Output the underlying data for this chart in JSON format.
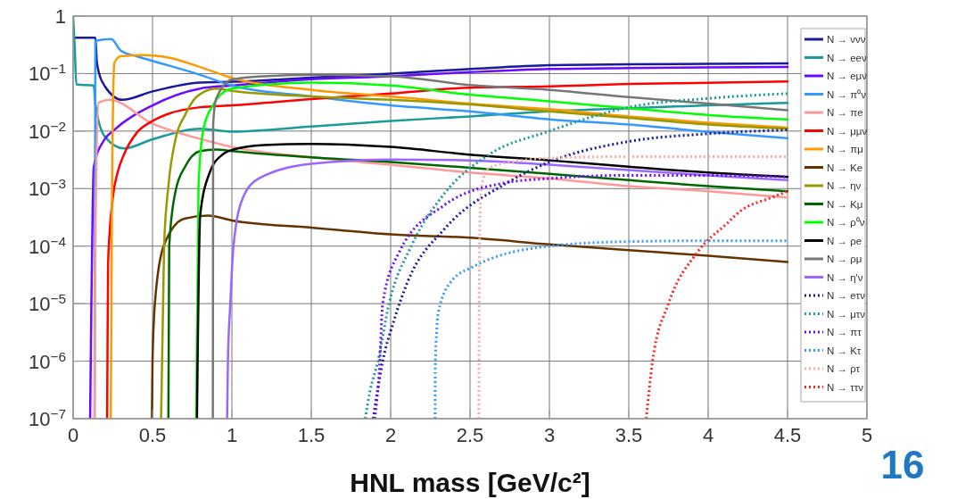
{
  "chart_data": {
    "type": "line",
    "xlabel": "HNL mass [GeV/c²]",
    "annotations": [
      "16"
    ],
    "xlim": [
      0,
      5
    ],
    "xticks": [
      0,
      0.5,
      1,
      1.5,
      2,
      2.5,
      3,
      3.5,
      4,
      4.5,
      5
    ],
    "ylim": [
      1e-07,
      1
    ],
    "yticks": [
      {
        "value": 1e-07,
        "label": "10$^{−7}$"
      },
      {
        "value": 1e-06,
        "label": "10$^{−6}$"
      },
      {
        "value": 1e-05,
        "label": "10$^{−5}$"
      },
      {
        "value": 0.0001,
        "label": "10$^{−4}$"
      },
      {
        "value": 0.001,
        "label": "10$^{−3}$"
      },
      {
        "value": 0.01,
        "label": "10$^{−2}$"
      },
      {
        "value": 0.1,
        "label": "10$^{−1}$"
      },
      1
    ],
    "log": "y",
    "grid": true,
    "legend": "top right",
    "line_style": "solid",
    "series": [
      {
        "name": "N → ννν",
        "color": "#1a1a9c",
        "x": [
          0,
          0.14,
          0.15,
          0.2,
          0.31,
          0.5,
          0.8,
          1,
          1.5,
          2,
          2.5,
          3,
          3.5,
          4,
          4.5
        ],
        "values": [
          0.42,
          0.42,
          0.15,
          0.06,
          0.035,
          0.049,
          0.07,
          0.072,
          0.085,
          0.1,
          0.12,
          0.14,
          0.145,
          0.148,
          0.15
        ]
      },
      {
        "name": "N → eeν",
        "color": "#1a9a9a",
        "x": [
          0,
          0.01,
          0.02,
          0.13,
          0.14,
          0.2,
          0.32,
          0.5,
          0.8,
          1,
          1.5,
          2,
          2.5,
          3,
          3.5,
          4,
          4.5
        ],
        "values": [
          1,
          0.3,
          0.065,
          0.062,
          0.03,
          0.008,
          0.005,
          0.0072,
          0.011,
          0.0098,
          0.012,
          0.015,
          0.018,
          0.022,
          0.025,
          0.028,
          0.031
        ]
      },
      {
        "name": "N → eμν",
        "color": "#6a0aff",
        "x": [
          0.107,
          0.115,
          0.13,
          0.2,
          0.25,
          0.5,
          0.8,
          1,
          1.5,
          2,
          2.5,
          3,
          3.5,
          4,
          4.5
        ],
        "values": [
          1e-07,
          1e-05,
          0.0024,
          0.0073,
          0.01,
          0.028,
          0.055,
          0.062,
          0.08,
          0.09,
          0.106,
          0.12,
          0.125,
          0.128,
          0.13
        ]
      },
      {
        "name": "N → π⁰ν",
        "color": "#3399ff",
        "x": [
          0.135,
          0.14,
          0.24,
          0.3,
          0.4,
          0.5,
          0.8,
          1,
          1.5,
          2,
          2.5,
          3,
          3.5,
          4,
          4.5
        ],
        "values": [
          1e-07,
          0.37,
          0.4,
          0.25,
          0.2,
          0.166,
          0.095,
          0.062,
          0.04,
          0.028,
          0.022,
          0.016,
          0.013,
          0.0097,
          0.0075
        ]
      },
      {
        "name": "N → πe",
        "color": "#ff9999",
        "x": [
          0.135,
          0.14,
          0.16,
          0.23,
          0.5,
          0.8,
          1,
          1.5,
          2,
          2.5,
          3,
          3.5,
          4,
          4.5
        ],
        "values": [
          1e-07,
          0.0001,
          0.031,
          0.035,
          0.0135,
          0.0073,
          0.0053,
          0.0035,
          0.0026,
          0.0019,
          0.0015,
          0.0011,
          0.0009,
          0.0007
        ]
      },
      {
        "name": "N → μμν",
        "color": "#ff0000",
        "x": [
          0.214,
          0.22,
          0.25,
          0.28,
          0.32,
          0.4,
          0.5,
          0.6,
          0.8,
          1,
          1.5,
          2,
          2.5,
          3,
          3.5,
          4,
          4.5
        ],
        "values": [
          1e-07,
          5e-05,
          0.0007,
          0.0019,
          0.0039,
          0.0093,
          0.015,
          0.02,
          0.026,
          0.028,
          0.036,
          0.045,
          0.057,
          0.06,
          0.066,
          0.069,
          0.073
        ]
      },
      {
        "name": "N → πμ",
        "color": "#ff9900",
        "x": [
          0.237,
          0.245,
          0.26,
          0.3,
          0.45,
          0.6,
          0.8,
          1,
          1.5,
          2,
          2.5,
          3,
          3.5,
          4,
          4.5
        ],
        "values": [
          1e-07,
          0.001,
          0.155,
          0.2,
          0.21,
          0.19,
          0.13,
          0.084,
          0.052,
          0.04,
          0.03,
          0.024,
          0.018,
          0.014,
          0.0115
        ]
      },
      {
        "name": "N → Ke",
        "color": "#663300",
        "x": [
          0.496,
          0.5,
          0.515,
          0.57,
          0.7,
          0.85,
          1,
          1.5,
          2,
          2.5,
          3,
          3.5,
          4,
          4.5
        ],
        "values": [
          1e-07,
          1e-06,
          1e-05,
          0.0001,
          0.0003,
          0.00034,
          0.00028,
          0.00021,
          0.00016,
          0.00014,
          0.000107,
          8.5e-05,
          6.8e-05,
          5.3e-05
        ]
      },
      {
        "name": "N → ην",
        "color": "#999900",
        "x": [
          0.554,
          0.573,
          0.6,
          0.645,
          0.705,
          0.78,
          0.9,
          1,
          1.5,
          2,
          2.5,
          3,
          3.5,
          4,
          4.5
        ],
        "values": [
          1e-07,
          0.0001,
          0.0011,
          0.0073,
          0.019,
          0.04,
          0.055,
          0.05,
          0.04,
          0.035,
          0.029,
          0.022,
          0.017,
          0.013,
          0.011
        ]
      },
      {
        "name": "N → Kμ",
        "color": "#006600",
        "x": [
          0.6,
          0.605,
          0.645,
          0.705,
          0.8,
          0.9,
          1,
          1.5,
          2,
          2.5,
          3,
          3.5,
          4,
          4.5
        ],
        "values": [
          1e-07,
          0.0001,
          0.0009,
          0.0024,
          0.0045,
          0.0048,
          0.0045,
          0.0035,
          0.0029,
          0.0023,
          0.0018,
          0.0014,
          0.0011,
          0.0009
        ]
      },
      {
        "name": "N → ρ⁰ν",
        "color": "#00ff00",
        "x": [
          0.775,
          0.79,
          0.82,
          0.88,
          1,
          1.5,
          2,
          2.5,
          3,
          3.5,
          4,
          4.5
        ],
        "values": [
          1e-07,
          0.0012,
          0.0106,
          0.028,
          0.055,
          0.07,
          0.062,
          0.043,
          0.033,
          0.025,
          0.019,
          0.016
        ]
      },
      {
        "name": "N → ρe",
        "color": "#000000",
        "x": [
          0.78,
          0.8,
          0.86,
          0.94,
          1,
          1.2,
          1.5,
          2,
          2.5,
          3,
          3.5,
          4,
          4.5
        ],
        "values": [
          1e-07,
          0.00034,
          0.0019,
          0.0039,
          0.0047,
          0.0057,
          0.006,
          0.0053,
          0.0039,
          0.0031,
          0.0024,
          0.0019,
          0.0016
        ]
      },
      {
        "name": "N → ρμ",
        "color": "#777777",
        "x": [
          0.88,
          0.882,
          0.9,
          1,
          1.2,
          1.5,
          2,
          2.5,
          3,
          3.5,
          4,
          4.5
        ],
        "values": [
          1e-07,
          0.013,
          0.036,
          0.079,
          0.09,
          0.095,
          0.09,
          0.063,
          0.052,
          0.039,
          0.03,
          0.023
        ]
      },
      {
        "name": "N → η'ν",
        "color": "#9966ff",
        "x": [
          0.97,
          0.975,
          0.99,
          1.01,
          1.07,
          1.17,
          1.5,
          2,
          2.5,
          3,
          3.5,
          4,
          4.5
        ],
        "values": [
          1e-07,
          1e-06,
          1e-05,
          0.0001,
          0.0007,
          0.0015,
          0.0027,
          0.0032,
          0.0031,
          0.0026,
          0.0021,
          0.0017,
          0.0014
        ]
      },
      {
        "name": "N → eτν",
        "color": "#1a1a9c",
        "line_style": "dotted",
        "x": [
          1.89,
          1.95,
          2.02,
          2.11,
          2.34,
          2.72,
          3,
          3.5,
          4,
          4.5
        ],
        "values": [
          1e-07,
          1e-06,
          5e-06,
          2.5e-05,
          0.0002,
          0.0012,
          0.0029,
          0.0066,
          0.009,
          0.0105
        ]
      },
      {
        "name": "N → μτν",
        "color": "#1a9a9a",
        "line_style": "dotted",
        "x": [
          1.84,
          1.87,
          1.92,
          1.99,
          2.13,
          2.34,
          2.62,
          3,
          3.5,
          4,
          4.5
        ],
        "values": [
          1e-07,
          3e-07,
          1e-06,
          1e-05,
          0.0001,
          0.00083,
          0.0039,
          0.01,
          0.026,
          0.037,
          0.045
        ]
      },
      {
        "name": "N → πτ",
        "color": "#6a0aff",
        "line_style": "dotted",
        "x": [
          1.9,
          1.93,
          1.95,
          2.05,
          2.34,
          2.72,
          3,
          3.5,
          4,
          4.5
        ],
        "values": [
          1e-07,
          8e-07,
          1e-05,
          7.5e-05,
          0.00052,
          0.00126,
          0.0015,
          0.0017,
          0.0017,
          0.0016
        ]
      },
      {
        "name": "N → Kτ",
        "color": "#3399ff",
        "line_style": "dotted",
        "x": [
          2.28,
          2.281,
          2.3,
          2.38,
          2.52,
          3,
          3.5,
          4,
          4.5
        ],
        "values": [
          1e-07,
          8e-07,
          7e-06,
          2.4e-05,
          4.4e-05,
          0.0001,
          0.00012,
          0.000124,
          0.000124
        ]
      },
      {
        "name": "N → ρτ",
        "color": "#ffaaaa",
        "line_style": "dotted",
        "x": [
          2.555,
          2.56,
          2.57,
          2.62,
          2.8,
          3,
          3.5,
          4,
          4.5
        ],
        "values": [
          1e-07,
          0.0001,
          0.001,
          0.0023,
          0.003,
          0.0034,
          0.0036,
          0.0036,
          0.0036
        ]
      },
      {
        "name": "N → ττν",
        "color": "#ff2222",
        "line_style": "dotted",
        "x": [
          3.61,
          3.65,
          3.75,
          3.93,
          4.12,
          4.2,
          4.4,
          4.5
        ],
        "values": [
          1e-07,
          1e-06,
          1e-05,
          7.7e-05,
          0.00025,
          0.0004,
          0.0007,
          0.0009
        ]
      }
    ]
  }
}
